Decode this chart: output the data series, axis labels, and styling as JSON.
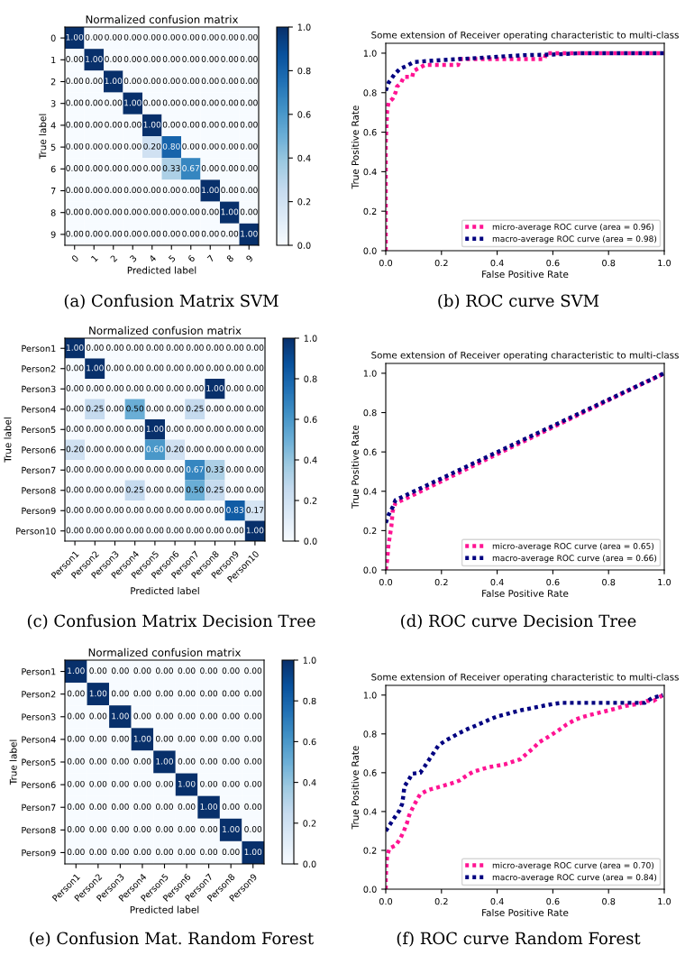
{
  "chart_data": [
    {
      "type": "heatmap",
      "title": "Normalized confusion matrix",
      "xlabel": "Predicted label",
      "ylabel": "True label",
      "categories": [
        "0",
        "1",
        "2",
        "3",
        "4",
        "5",
        "6",
        "7",
        "8",
        "9"
      ],
      "y_categories": [
        "0",
        "1",
        "2",
        "3",
        "4",
        "5",
        "6",
        "7",
        "8",
        "9"
      ],
      "cells": [
        [
          1,
          0,
          0,
          0,
          0,
          0,
          0,
          0,
          0,
          0
        ],
        [
          0,
          1,
          0,
          0,
          0,
          0,
          0,
          0,
          0,
          0
        ],
        [
          0,
          0,
          1,
          0,
          0,
          0,
          0,
          0,
          0,
          0
        ],
        [
          0,
          0,
          0,
          1,
          0,
          0,
          0,
          0,
          0,
          0
        ],
        [
          0,
          0,
          0,
          0,
          1,
          0,
          0,
          0,
          0,
          0
        ],
        [
          0,
          0,
          0,
          0,
          0.2,
          0.8,
          0,
          0,
          0,
          0
        ],
        [
          0,
          0,
          0,
          0,
          0,
          0.33,
          0.67,
          0,
          0,
          0
        ],
        [
          0,
          0,
          0,
          0,
          0,
          0,
          0,
          1,
          0,
          0
        ],
        [
          0,
          0,
          0,
          0,
          0,
          0,
          0,
          0,
          1,
          0
        ],
        [
          0,
          0,
          0,
          0,
          0,
          0,
          0,
          0,
          0,
          1
        ]
      ],
      "cell_labels": [
        [
          "1.00",
          "0.00",
          "0.00",
          "0.00",
          "0.00",
          "0.00",
          "0.00",
          "0.00",
          "0.00",
          "0.00"
        ],
        [
          "0.00",
          "1.00",
          "0.00",
          "0.00",
          "0.00",
          "0.00",
          "0.00",
          "0.00",
          "0.00",
          "0.00"
        ],
        [
          "0.00",
          "0.00",
          "1.00",
          "0.00",
          "0.00",
          "0.00",
          "0.00",
          "0.00",
          "0.00",
          "0.00"
        ],
        [
          "0.00",
          "0.00",
          "0.00",
          "1.00",
          "0.00",
          "0.00",
          "0.00",
          "0.00",
          "0.00",
          "0.00"
        ],
        [
          "0.00",
          "0.00",
          "0.00",
          "0.00",
          "1.00",
          "0.00",
          "0.00",
          "0.00",
          "0.00",
          "0.00"
        ],
        [
          "0.00",
          "0.00",
          "0.00",
          "0.00",
          "0.20",
          "0.80",
          "0.00",
          "0.00",
          "0.00",
          "0.00"
        ],
        [
          "0.00",
          "0.00",
          "0.00",
          "0.00",
          "0.00",
          "0.33",
          "0.67",
          "0.00",
          "0.00",
          "0.00"
        ],
        [
          "0.00",
          "0.00",
          "0.00",
          "0.00",
          "0.00",
          "0.00",
          "0.00",
          "1.00",
          "0.00",
          "0.00"
        ],
        [
          "0.00",
          "0.00",
          "0.00",
          "0.00",
          "0.00",
          "0.00",
          "0.00",
          "0.00",
          "1.00",
          "0.00"
        ],
        [
          "0.00",
          "0.00",
          "0.00",
          "0.00",
          "0.00",
          "0.00",
          "0.00",
          "0.00",
          "0.00",
          "1.00"
        ]
      ],
      "clim": [
        0,
        1
      ],
      "cticks": [
        {
          "value": 0,
          "label": "0.0"
        },
        {
          "value": 0.2,
          "label": "0.2"
        },
        {
          "value": 0.4,
          "label": "0.4"
        },
        {
          "value": 0.6,
          "label": "0.6"
        },
        {
          "value": 0.8,
          "label": "0.8"
        },
        {
          "value": 1,
          "label": "1.0"
        }
      ],
      "annotations": [
        "(a) Confusion Matrix SVM"
      ]
    },
    {
      "type": "line",
      "title": "Some extension of Receiver operating characteristic to multi-class",
      "xlabel": "False Positive Rate",
      "ylabel": "True Positive Rate",
      "xlim": [
        0,
        1
      ],
      "ylim": [
        0,
        1.05
      ],
      "xticks": [
        {
          "value": 0,
          "label": "0.0"
        },
        {
          "value": 0.2,
          "label": "0.2"
        },
        {
          "value": 0.4,
          "label": "0.4"
        },
        {
          "value": 0.6,
          "label": "0.6"
        },
        {
          "value": 0.8,
          "label": "0.8"
        },
        {
          "value": 1,
          "label": "1.0"
        }
      ],
      "yticks": [
        {
          "value": 0,
          "label": "0.0"
        },
        {
          "value": 0.2,
          "label": "0.2"
        },
        {
          "value": 0.4,
          "label": "0.4"
        },
        {
          "value": 0.6,
          "label": "0.6"
        },
        {
          "value": 0.8,
          "label": "0.8"
        },
        {
          "value": 1,
          "label": "1.0"
        }
      ],
      "legend": "bottom right",
      "line_style": "dotted",
      "series": [
        {
          "name": "micro-average ROC curve (area = 0.96)",
          "color": "#ff1493",
          "x": [
            0,
            0,
            0.005,
            0.01,
            0.025,
            0.035,
            0.04,
            0.055,
            0.065,
            0.095,
            0.1,
            0.12,
            0.14,
            0.26,
            0.265,
            0.57,
            0.575,
            1
          ],
          "values": [
            0,
            0.55,
            0.71,
            0.75,
            0.77,
            0.8,
            0.83,
            0.85,
            0.88,
            0.88,
            0.91,
            0.925,
            0.94,
            0.94,
            0.97,
            0.97,
            1,
            1
          ]
        },
        {
          "name": "macro-average ROC curve (area = 0.98)",
          "color": "#000080",
          "x": [
            0,
            0.01,
            0.03,
            0.05,
            0.075,
            0.1,
            0.2,
            0.3,
            0.4,
            0.5,
            0.6,
            0.7,
            1
          ],
          "values": [
            0.81,
            0.85,
            0.89,
            0.92,
            0.935,
            0.955,
            0.965,
            0.973,
            0.982,
            0.99,
            0.993,
            1,
            1
          ]
        }
      ],
      "annotations": [
        "(b) ROC curve SVM"
      ]
    },
    {
      "type": "heatmap",
      "title": "Normalized confusion matrix",
      "xlabel": "Predicted label",
      "ylabel": "True label",
      "categories": [
        "Person1",
        "Person2",
        "Person3",
        "Person4",
        "Person5",
        "Person6",
        "Person7",
        "Person8",
        "Person9",
        "Person10"
      ],
      "y_categories": [
        "Person1",
        "Person2",
        "Person3",
        "Person4",
        "Person5",
        "Person6",
        "Person7",
        "Person8",
        "Person9",
        "Person10"
      ],
      "cells": [
        [
          1,
          0,
          0,
          0,
          0,
          0,
          0,
          0,
          0,
          0
        ],
        [
          0,
          1,
          0,
          0,
          0,
          0,
          0,
          0,
          0,
          0
        ],
        [
          0,
          0,
          0,
          0,
          0,
          0,
          0,
          1,
          0,
          0
        ],
        [
          0,
          0.25,
          0,
          0.5,
          0,
          0,
          0.25,
          0,
          0,
          0
        ],
        [
          0,
          0,
          0,
          0,
          1,
          0,
          0,
          0,
          0,
          0
        ],
        [
          0.2,
          0,
          0,
          0,
          0.6,
          0.2,
          0,
          0,
          0,
          0
        ],
        [
          0,
          0,
          0,
          0,
          0,
          0,
          0.67,
          0.33,
          0,
          0
        ],
        [
          0,
          0,
          0,
          0.25,
          0,
          0,
          0.5,
          0.25,
          0,
          0
        ],
        [
          0,
          0,
          0,
          0,
          0,
          0,
          0,
          0,
          0.83,
          0.17
        ],
        [
          0,
          0,
          0,
          0,
          0,
          0,
          0,
          0,
          0,
          1
        ]
      ],
      "cell_labels": [
        [
          "1.00",
          "0.00",
          "0.00",
          "0.00",
          "0.00",
          "0.00",
          "0.00",
          "0.00",
          "0.00",
          "0.00"
        ],
        [
          "0.00",
          "1.00",
          "0.00",
          "0.00",
          "0.00",
          "0.00",
          "0.00",
          "0.00",
          "0.00",
          "0.00"
        ],
        [
          "0.00",
          "0.00",
          "0.00",
          "0.00",
          "0.00",
          "0.00",
          "0.00",
          "1.00",
          "0.00",
          "0.00"
        ],
        [
          "0.00",
          "0.25",
          "0.00",
          "0.50",
          "0.00",
          "0.00",
          "0.25",
          "0.00",
          "0.00",
          "0.00"
        ],
        [
          "0.00",
          "0.00",
          "0.00",
          "0.00",
          "1.00",
          "0.00",
          "0.00",
          "0.00",
          "0.00",
          "0.00"
        ],
        [
          "0.20",
          "0.00",
          "0.00",
          "0.00",
          "0.60",
          "0.20",
          "0.00",
          "0.00",
          "0.00",
          "0.00"
        ],
        [
          "0.00",
          "0.00",
          "0.00",
          "0.00",
          "0.00",
          "0.00",
          "0.67",
          "0.33",
          "0.00",
          "0.00"
        ],
        [
          "0.00",
          "0.00",
          "0.00",
          "0.25",
          "0.00",
          "0.00",
          "0.50",
          "0.25",
          "0.00",
          "0.00"
        ],
        [
          "0.00",
          "0.00",
          "0.00",
          "0.00",
          "0.00",
          "0.00",
          "0.00",
          "0.00",
          "0.83",
          "0.17"
        ],
        [
          "0.00",
          "0.00",
          "0.00",
          "0.00",
          "0.00",
          "0.00",
          "0.00",
          "0.00",
          "0.00",
          "1.00"
        ]
      ],
      "clim": [
        0,
        1
      ],
      "cticks": [
        {
          "value": 0,
          "label": "0.0"
        },
        {
          "value": 0.2,
          "label": "0.2"
        },
        {
          "value": 0.4,
          "label": "0.4"
        },
        {
          "value": 0.6,
          "label": "0.6"
        },
        {
          "value": 0.8,
          "label": "0.8"
        },
        {
          "value": 1,
          "label": "1.0"
        }
      ],
      "annotations": [
        "(c) Confusion Matrix Decision Tree"
      ]
    },
    {
      "type": "line",
      "title": "Some extension of Receiver operating characteristic to multi-class",
      "xlabel": "False Positive Rate",
      "ylabel": "True Positive Rate",
      "xlim": [
        0,
        1
      ],
      "ylim": [
        0,
        1.05
      ],
      "xticks": [
        {
          "value": 0,
          "label": "0.0"
        },
        {
          "value": 0.2,
          "label": "0.2"
        },
        {
          "value": 0.4,
          "label": "0.4"
        },
        {
          "value": 0.6,
          "label": "0.6"
        },
        {
          "value": 0.8,
          "label": "0.8"
        },
        {
          "value": 1,
          "label": "1.0"
        }
      ],
      "yticks": [
        {
          "value": 0,
          "label": "0.0"
        },
        {
          "value": 0.2,
          "label": "0.2"
        },
        {
          "value": 0.4,
          "label": "0.4"
        },
        {
          "value": 0.6,
          "label": "0.6"
        },
        {
          "value": 0.8,
          "label": "0.8"
        },
        {
          "value": 1,
          "label": "1.0"
        }
      ],
      "legend": "bottom right",
      "line_style": "dotted",
      "series": [
        {
          "name": "micro-average ROC curve (area = 0.65)",
          "color": "#ff1493",
          "x": [
            0,
            0.005,
            0.01,
            0.02,
            0.025,
            0.035,
            0.06,
            1
          ],
          "values": [
            0,
            0.05,
            0.13,
            0.22,
            0.3,
            0.34,
            0.355,
            1
          ]
        },
        {
          "name": "macro-average ROC curve (area = 0.66)",
          "color": "#000080",
          "x": [
            0,
            0.01,
            0.025,
            0.035,
            1
          ],
          "values": [
            0.24,
            0.28,
            0.32,
            0.355,
            1
          ]
        }
      ],
      "annotations": [
        "(d) ROC curve Decision Tree"
      ]
    },
    {
      "type": "heatmap",
      "title": "Normalized confusion matrix",
      "xlabel": "Predicted label",
      "ylabel": "True label",
      "categories": [
        "Person1",
        "Person2",
        "Person3",
        "Person4",
        "Person5",
        "Person6",
        "Person7",
        "Person8",
        "Person9"
      ],
      "y_categories": [
        "Person1",
        "Person2",
        "Person3",
        "Person4",
        "Person5",
        "Person6",
        "Person7",
        "Person8",
        "Person9"
      ],
      "cells": [
        [
          1,
          0,
          0,
          0,
          0,
          0,
          0,
          0,
          0
        ],
        [
          0,
          1,
          0,
          0,
          0,
          0,
          0,
          0,
          0
        ],
        [
          0,
          0,
          1,
          0,
          0,
          0,
          0,
          0,
          0
        ],
        [
          0,
          0,
          0,
          1,
          0,
          0,
          0,
          0,
          0
        ],
        [
          0,
          0,
          0,
          0,
          1,
          0,
          0,
          0,
          0
        ],
        [
          0,
          0,
          0,
          0,
          0,
          1,
          0,
          0,
          0
        ],
        [
          0,
          0,
          0,
          0,
          0,
          0,
          1,
          0,
          0
        ],
        [
          0,
          0,
          0,
          0,
          0,
          0,
          0,
          1,
          0
        ],
        [
          0,
          0,
          0,
          0,
          0,
          0,
          0,
          0,
          1
        ]
      ],
      "cell_labels": [
        [
          "1.00",
          "0.00",
          "0.00",
          "0.00",
          "0.00",
          "0.00",
          "0.00",
          "0.00",
          "0.00"
        ],
        [
          "0.00",
          "1.00",
          "0.00",
          "0.00",
          "0.00",
          "0.00",
          "0.00",
          "0.00",
          "0.00"
        ],
        [
          "0.00",
          "0.00",
          "1.00",
          "0.00",
          "0.00",
          "0.00",
          "0.00",
          "0.00",
          "0.00"
        ],
        [
          "0.00",
          "0.00",
          "0.00",
          "1.00",
          "0.00",
          "0.00",
          "0.00",
          "0.00",
          "0.00"
        ],
        [
          "0.00",
          "0.00",
          "0.00",
          "0.00",
          "1.00",
          "0.00",
          "0.00",
          "0.00",
          "0.00"
        ],
        [
          "0.00",
          "0.00",
          "0.00",
          "0.00",
          "0.00",
          "1.00",
          "0.00",
          "0.00",
          "0.00"
        ],
        [
          "0.00",
          "0.00",
          "0.00",
          "0.00",
          "0.00",
          "0.00",
          "1.00",
          "0.00",
          "0.00"
        ],
        [
          "0.00",
          "0.00",
          "0.00",
          "0.00",
          "0.00",
          "0.00",
          "0.00",
          "1.00",
          "0.00"
        ],
        [
          "0.00",
          "0.00",
          "0.00",
          "0.00",
          "0.00",
          "0.00",
          "0.00",
          "0.00",
          "1.00"
        ]
      ],
      "clim": [
        0,
        1
      ],
      "cticks": [
        {
          "value": 0,
          "label": "0.0"
        },
        {
          "value": 0.2,
          "label": "0.2"
        },
        {
          "value": 0.4,
          "label": "0.4"
        },
        {
          "value": 0.6,
          "label": "0.6"
        },
        {
          "value": 0.8,
          "label": "0.8"
        },
        {
          "value": 1,
          "label": "1.0"
        }
      ],
      "annotations": [
        "(e) Confusion Mat. Random Forest"
      ]
    },
    {
      "type": "line",
      "title": "Some extension of Receiver operating characteristic to multi-class",
      "xlabel": "False Positive Rate",
      "ylabel": "True Positive Rate",
      "xlim": [
        0,
        1
      ],
      "ylim": [
        0,
        1.05
      ],
      "xticks": [
        {
          "value": 0,
          "label": "0.0"
        },
        {
          "value": 0.2,
          "label": "0.2"
        },
        {
          "value": 0.4,
          "label": "0.4"
        },
        {
          "value": 0.6,
          "label": "0.6"
        },
        {
          "value": 0.8,
          "label": "0.8"
        },
        {
          "value": 1,
          "label": "1.0"
        }
      ],
      "yticks": [
        {
          "value": 0,
          "label": "0.0"
        },
        {
          "value": 0.2,
          "label": "0.2"
        },
        {
          "value": 0.4,
          "label": "0.4"
        },
        {
          "value": 0.6,
          "label": "0.6"
        },
        {
          "value": 0.8,
          "label": "0.8"
        },
        {
          "value": 1,
          "label": "1.0"
        }
      ],
      "legend": "bottom right",
      "line_style": "dotted",
      "series": [
        {
          "name": "micro-average ROC curve (area = 0.70)",
          "color": "#ff1493",
          "x": [
            0,
            0,
            0.002,
            0.005,
            0.013,
            0.035,
            0.052,
            0.065,
            0.076,
            0.084,
            0.097,
            0.11,
            0.124,
            0.151,
            0.2,
            0.236,
            0.265,
            0.29,
            0.314,
            0.368,
            0.427,
            0.484,
            0.508,
            0.53,
            0.551,
            0.578,
            0.6,
            0.627,
            0.649,
            0.676,
            0.703,
            0.735,
            0.778,
            0.822,
            0.86,
            0.908,
            0.94,
            0.962,
            0.978,
            0.995
          ],
          "values": [
            0,
            0.05,
            0.12,
            0.17,
            0.21,
            0.225,
            0.26,
            0.3,
            0.34,
            0.38,
            0.42,
            0.455,
            0.49,
            0.51,
            0.53,
            0.545,
            0.56,
            0.585,
            0.605,
            0.628,
            0.643,
            0.67,
            0.7,
            0.727,
            0.757,
            0.78,
            0.8,
            0.825,
            0.848,
            0.87,
            0.886,
            0.898,
            0.913,
            0.929,
            0.944,
            0.955,
            0.97,
            0.97,
            0.985,
            1
          ]
        },
        {
          "name": "macro-average ROC curve (area = 0.84)",
          "color": "#000080",
          "x": [
            0,
            0.016,
            0.032,
            0.049,
            0.059,
            0.063,
            0.067,
            0.081,
            0.095,
            0.124,
            0.141,
            0.157,
            0.173,
            0.189,
            0.214,
            0.24,
            0.265,
            0.292,
            0.319,
            0.346,
            0.373,
            0.4,
            0.429,
            0.459,
            0.486,
            0.519,
            0.546,
            0.573,
            0.6,
            0.632,
            0.746,
            0.93,
            0.957,
            0.995
          ],
          "values": [
            0.3,
            0.335,
            0.37,
            0.405,
            0.44,
            0.48,
            0.53,
            0.56,
            0.595,
            0.6,
            0.635,
            0.67,
            0.705,
            0.74,
            0.765,
            0.785,
            0.805,
            0.824,
            0.84,
            0.857,
            0.874,
            0.89,
            0.9,
            0.912,
            0.922,
            0.931,
            0.939,
            0.947,
            0.954,
            0.96,
            0.96,
            0.96,
            0.985,
            1
          ]
        }
      ],
      "annotations": [
        "(f) ROC curve Random Forest"
      ]
    }
  ]
}
